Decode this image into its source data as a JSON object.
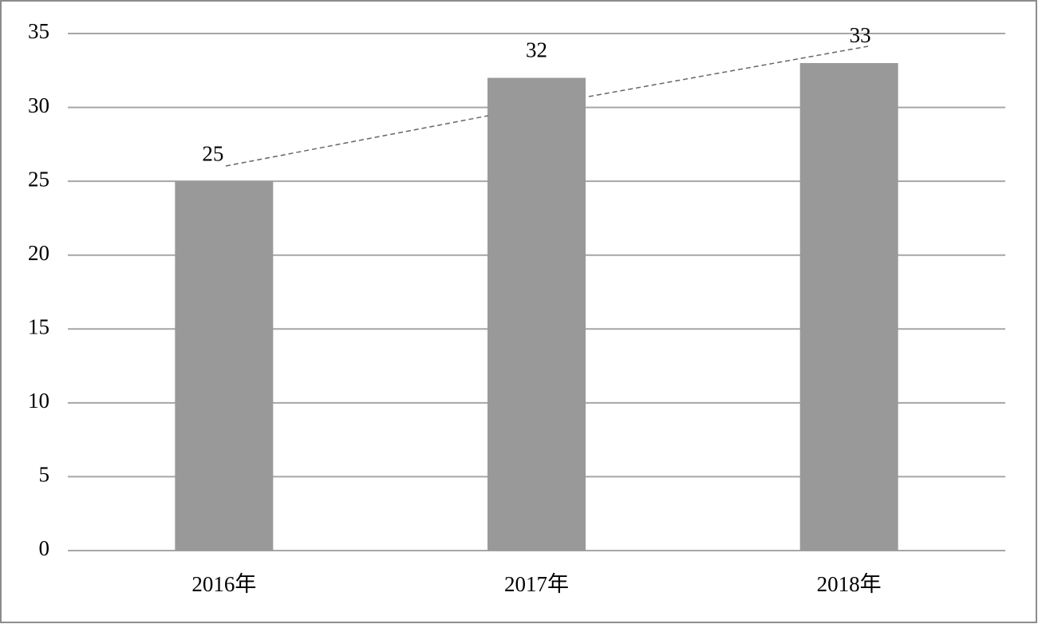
{
  "chart_data": {
    "type": "bar",
    "categories": [
      "2016年",
      "2017年",
      "2018年"
    ],
    "values": [
      25,
      32,
      33
    ],
    "color": "#999999",
    "ylim": [
      0,
      35
    ],
    "yticks": [
      0,
      5,
      10,
      15,
      20,
      25,
      30,
      35
    ],
    "grid": true
  }
}
